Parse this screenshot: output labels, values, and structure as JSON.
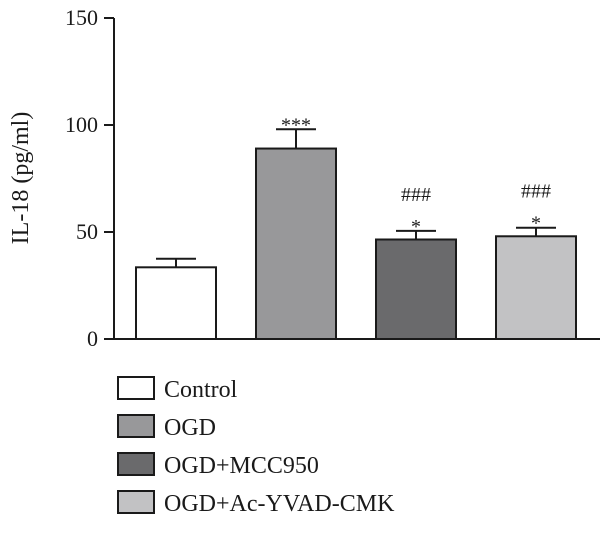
{
  "chart_data": {
    "type": "bar",
    "title": "",
    "xlabel": "",
    "ylabel": "IL-18 (pg/ml)",
    "ylim": [
      0,
      150
    ],
    "yticks": [
      0,
      50,
      100,
      150
    ],
    "grid": false,
    "legend_position": "bottom",
    "categories": [
      "Control",
      "OGD",
      "OGD+MCC950",
      "OGD+Ac-YVAD-CMK"
    ],
    "values": [
      33.5,
      89,
      46.5,
      48
    ],
    "errors": [
      4,
      9,
      4,
      4
    ],
    "annotations": [
      [],
      [
        "***"
      ],
      [
        "###",
        "*"
      ],
      [
        "###",
        "*"
      ]
    ],
    "colors": [
      "#ffffff",
      "#98989a",
      "#6a6a6c",
      "#c2c2c4"
    ]
  }
}
